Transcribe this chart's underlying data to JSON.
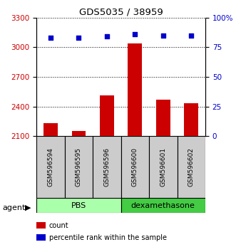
{
  "title": "GDS5035 / 38959",
  "samples": [
    "GSM596594",
    "GSM596595",
    "GSM596596",
    "GSM596600",
    "GSM596601",
    "GSM596602"
  ],
  "counts": [
    2230,
    2150,
    2510,
    3040,
    2470,
    2430
  ],
  "percentiles": [
    83,
    83,
    84,
    86,
    85,
    85
  ],
  "ylim_left": [
    2100,
    3300
  ],
  "ylim_right": [
    0,
    100
  ],
  "yticks_left": [
    2100,
    2400,
    2700,
    3000,
    3300
  ],
  "yticks_right": [
    0,
    25,
    50,
    75,
    100
  ],
  "yticklabels_right": [
    "0",
    "25",
    "50",
    "75",
    "100%"
  ],
  "bar_color": "#cc0000",
  "dot_color": "#0000cc",
  "groups": [
    {
      "label": "PBS",
      "indices": [
        0,
        1,
        2
      ],
      "color": "#aaffaa"
    },
    {
      "label": "dexamethasone",
      "indices": [
        3,
        4,
        5
      ],
      "color": "#44cc44"
    }
  ],
  "agent_label": "agent",
  "legend_items": [
    {
      "label": "count",
      "color": "#cc0000"
    },
    {
      "label": "percentile rank within the sample",
      "color": "#0000cc"
    }
  ],
  "bar_width": 0.5,
  "sample_box_color": "#cccccc"
}
